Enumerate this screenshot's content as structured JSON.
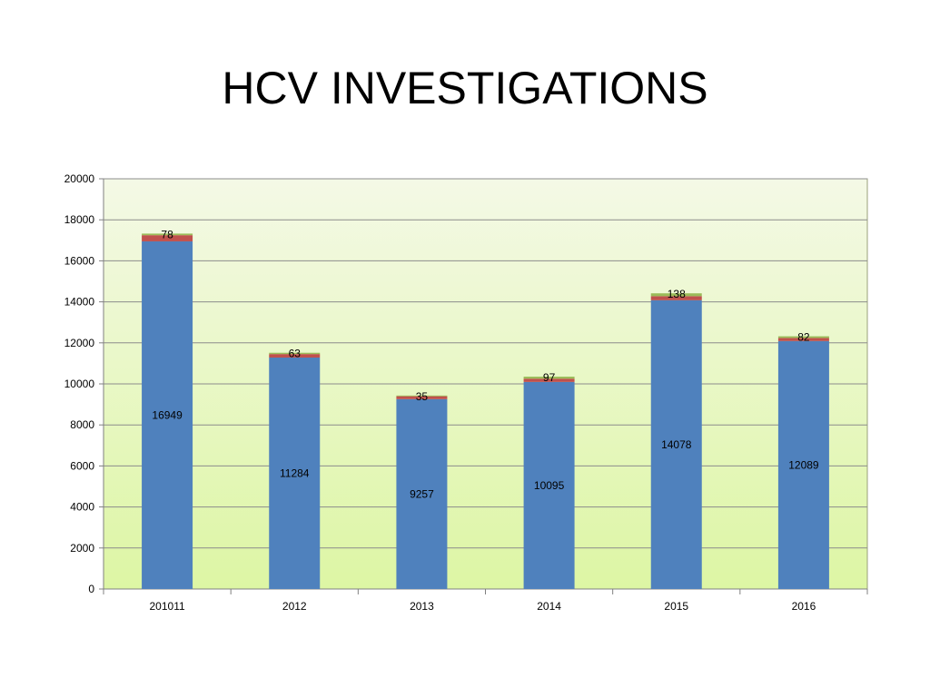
{
  "title": "HCV INVESTIGATIONS",
  "chart_data": {
    "type": "bar",
    "stacked": true,
    "title": "HCV INVESTIGATIONS",
    "xlabel": "",
    "ylabel": "",
    "categories": [
      "201011",
      "2012",
      "2013",
      "2014",
      "2015",
      "2016"
    ],
    "ylim": [
      0,
      20000
    ],
    "yticks": [
      0,
      2000,
      4000,
      6000,
      8000,
      10000,
      12000,
      14000,
      16000,
      18000,
      20000
    ],
    "grid": true,
    "legend": "none",
    "series": [
      {
        "values": [
          16949,
          11284,
          9257,
          10095,
          14078,
          12089
        ],
        "color": "#4f81bd",
        "show_labels": true
      },
      {
        "values": [
          300,
          170,
          140,
          160,
          200,
          150
        ],
        "color": "#c0504d",
        "show_labels": false
      },
      {
        "values": [
          78,
          63,
          35,
          97,
          138,
          82
        ],
        "color": "#9bbb59",
        "show_labels": true
      }
    ],
    "plot_background": {
      "top": "#f4f9e6",
      "bottom": "#ddf6a4"
    }
  }
}
